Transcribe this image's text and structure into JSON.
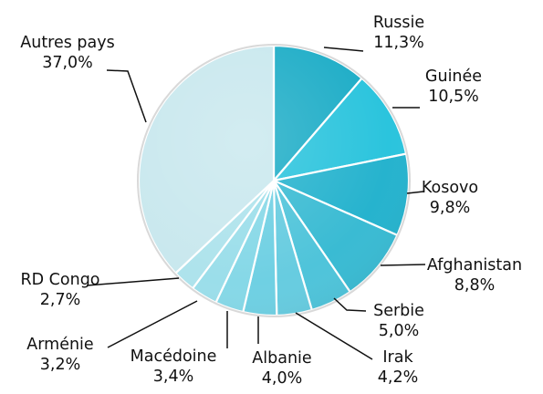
{
  "chart_data": {
    "type": "pie",
    "title": "",
    "legend": "none",
    "slices": [
      {
        "label": "Russie",
        "value_label": "11,3%",
        "value": 11.3,
        "color": "#1EADC7"
      },
      {
        "label": "Guinée",
        "value_label": "10,5%",
        "value": 10.5,
        "color": "#2BC4DD"
      },
      {
        "label": "Kosovo",
        "value_label": "9,8%",
        "value": 9.8,
        "color": "#26B3CE"
      },
      {
        "label": "Afghanistan",
        "value_label": "8,8%",
        "value": 8.8,
        "color": "#3ABBD3"
      },
      {
        "label": "Serbie",
        "value_label": "5,0%",
        "value": 5.0,
        "color": "#4FC4DA"
      },
      {
        "label": "Irak",
        "value_label": "4,2%",
        "value": 4.2,
        "color": "#67CCE0"
      },
      {
        "label": "Albanie",
        "value_label": "4,0%",
        "value": 4.0,
        "color": "#6FD0E3"
      },
      {
        "label": "Macédoine",
        "value_label": "3,4%",
        "value": 3.4,
        "color": "#86D8E7"
      },
      {
        "label": "Arménie",
        "value_label": "3,2%",
        "value": 3.2,
        "color": "#9BDEEA"
      },
      {
        "label": "RD Congo",
        "value_label": "2,7%",
        "value": 2.7,
        "color": "#AEE3EC"
      },
      {
        "label": "Autres pays",
        "value_label": "37,0%",
        "value": 37.0,
        "color": "#C9E8EE"
      }
    ]
  }
}
